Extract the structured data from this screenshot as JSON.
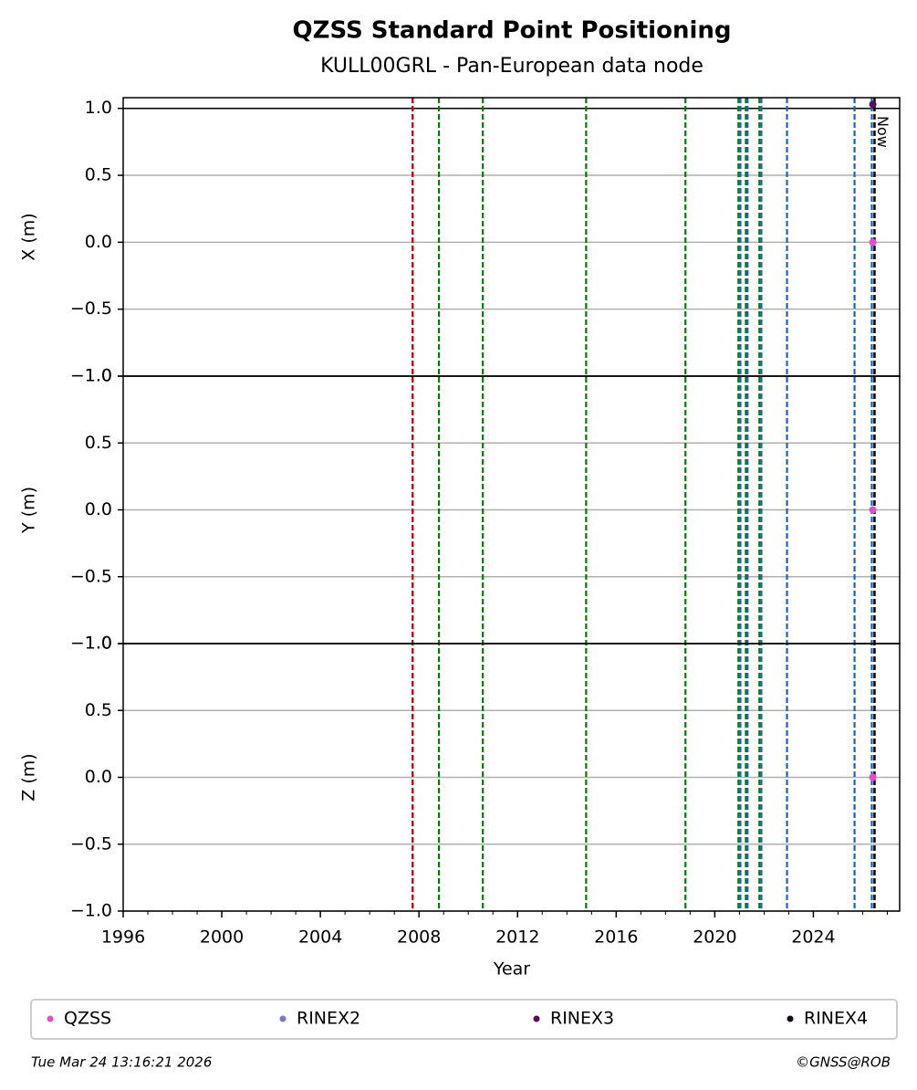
{
  "chart_data": {
    "type": "scatter",
    "title": "QZSS Standard Point Positioning",
    "subtitle": "KULL00GRL - Pan-European data node",
    "xlabel": "Year",
    "xlim": [
      1996,
      2027.5
    ],
    "xticks": [
      1996,
      2000,
      2004,
      2008,
      2012,
      2016,
      2020,
      2024
    ],
    "xminorticks": [
      1997,
      1998,
      1999,
      2001,
      2002,
      2003,
      2005,
      2006,
      2007,
      2009,
      2010,
      2011,
      2013,
      2014,
      2015,
      2017,
      2018,
      2019,
      2021,
      2022,
      2023,
      2025,
      2026,
      2027
    ],
    "grid": true,
    "series": [
      {
        "name": "QZSS",
        "color": "#e84cc8"
      },
      {
        "name": "RINEX2",
        "color": "#7b7bc4"
      },
      {
        "name": "RINEX3",
        "color": "#5c0a5c"
      },
      {
        "name": "RINEX4",
        "color": "#1a0a1e"
      }
    ],
    "legend": "bottom",
    "vlines": [
      {
        "x": 2007.74,
        "color": "#008000"
      },
      {
        "x": 2007.74,
        "color": "#e00000"
      },
      {
        "x": 2008.81,
        "color": "#008000"
      },
      {
        "x": 2010.59,
        "color": "#008000"
      },
      {
        "x": 2014.78,
        "color": "#008000"
      },
      {
        "x": 2018.81,
        "color": "#008000"
      },
      {
        "x": 2020.96,
        "color": "#008000"
      },
      {
        "x": 2021.26,
        "color": "#008000"
      },
      {
        "x": 2021.81,
        "color": "#008000"
      },
      {
        "x": 2021.04,
        "color": "#1565c0"
      },
      {
        "x": 2021.33,
        "color": "#1565c0"
      },
      {
        "x": 2021.89,
        "color": "#1565c0"
      },
      {
        "x": 2022.93,
        "color": "#1565c0"
      },
      {
        "x": 2025.67,
        "color": "#1565c0"
      },
      {
        "x": 2026.37,
        "color": "#1565c0"
      }
    ],
    "now": {
      "x": 2026.48,
      "label": "Now"
    },
    "panels": [
      {
        "ylabel": "X (m)",
        "ylim": [
          -1,
          1.08
        ],
        "hlines": [
          1
        ],
        "yticks": [
          {
            "value": -1,
            "label": "−1.0"
          },
          {
            "value": -0.5,
            "label": "−0.5"
          },
          {
            "value": 0,
            "label": "0.0"
          },
          {
            "value": 0.5,
            "label": "0.5"
          },
          {
            "value": 1,
            "label": "1.0"
          }
        ],
        "points": [
          {
            "x": [
              2026.41
            ],
            "values": [
              0
            ]
          },
          {
            "x": [],
            "values": []
          },
          {
            "x": [
              2026.41
            ],
            "values": [
              1.03
            ]
          },
          {
            "x": [],
            "values": []
          }
        ]
      },
      {
        "ylabel": "Y (m)",
        "ylim": [
          -1,
          1
        ],
        "hlines": [],
        "yticks": [
          {
            "value": -1,
            "label": "−1.0"
          },
          {
            "value": -0.5,
            "label": "−0.5"
          },
          {
            "value": 0,
            "label": "0.0"
          },
          {
            "value": 0.5,
            "label": "0.5"
          },
          {
            "value": 1,
            "label": "1.0"
          }
        ],
        "points": [
          {
            "x": [
              2026.41
            ],
            "values": [
              0
            ]
          },
          {
            "x": [],
            "values": []
          },
          {
            "x": [],
            "values": []
          },
          {
            "x": [],
            "values": []
          }
        ]
      },
      {
        "ylabel": "Z (m)",
        "ylim": [
          -1,
          1
        ],
        "hlines": [],
        "yticks": [
          {
            "value": -1,
            "label": "−1.0"
          },
          {
            "value": -0.5,
            "label": "−0.5"
          },
          {
            "value": 0,
            "label": "0.0"
          },
          {
            "value": 0.5,
            "label": "0.5"
          },
          {
            "value": 1,
            "label": "1.0"
          }
        ],
        "points": [
          {
            "x": [
              2026.41
            ],
            "values": [
              0
            ]
          },
          {
            "x": [],
            "values": []
          },
          {
            "x": [],
            "values": []
          },
          {
            "x": [],
            "values": []
          }
        ]
      }
    ],
    "footer_left": "Tue Mar 24 13:16:21 2026",
    "footer_right": "©GNSS@ROB"
  }
}
